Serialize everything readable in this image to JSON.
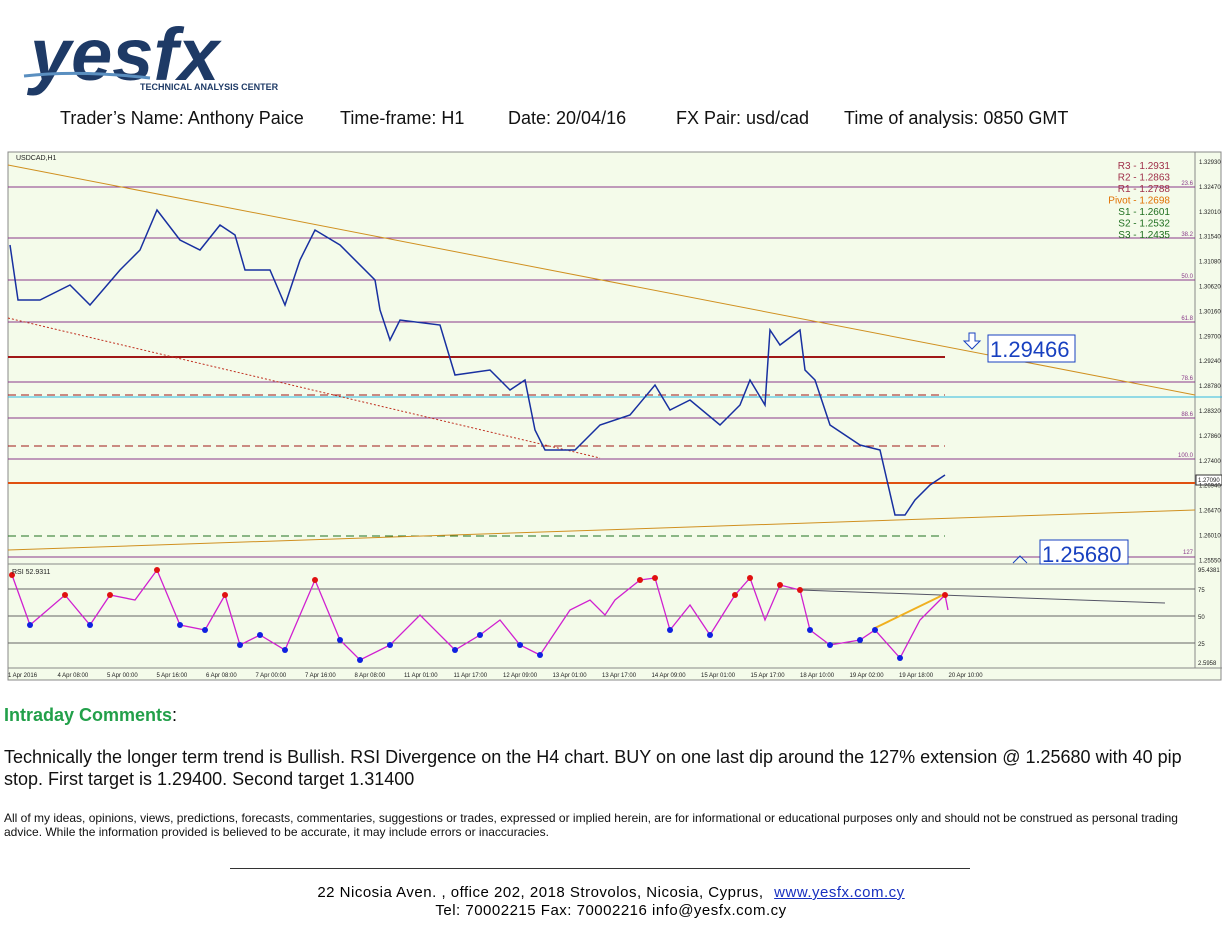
{
  "logo": {
    "name": "yesfx",
    "tagline": "TECHNICAL ANALYSIS CENTER"
  },
  "header": {
    "trader": "Trader’s Name: Anthony Paice",
    "timeframe": "Time-frame:  H1",
    "date": "Date:  20/04/16",
    "pair": "FX Pair: usd/cad",
    "time": "Time of analysis: 0850 GMT"
  },
  "chart": {
    "symbol": "USDCAD,H1",
    "rsi_label": "RSI 52.9311",
    "pivots": [
      "R3 - 1.2931",
      "R2 - 1.2863",
      "R1 - 1.2788",
      "Pivot - 1.2698",
      "S1 - 1.2601",
      "S2 - 1.2532",
      "S3 - 1.2435"
    ],
    "fib_levels": [
      "23.6",
      "38.2",
      "50.0",
      "61.8",
      "78.6",
      "88.6",
      "100.0",
      "127"
    ],
    "price_axis": [
      "1.32930",
      "1.32470",
      "1.32010",
      "1.31540",
      "1.31080",
      "1.30620",
      "1.30160",
      "1.29700",
      "1.29240",
      "1.28780",
      "1.28320",
      "1.27860",
      "1.27400",
      "1.26940",
      "1.26470",
      "1.26010",
      "1.25550"
    ],
    "current_price": "1.27090",
    "rsi_axis": [
      "95.4381",
      "75",
      "50",
      "25",
      "2.5958"
    ],
    "target_label": "1.29466",
    "entry_label": "1.25680",
    "time_axis": [
      "1 Apr 2016",
      "4 Apr 08:00",
      "5 Apr 00:00",
      "5 Apr 16:00",
      "6 Apr 08:00",
      "7 Apr 00:00",
      "7 Apr 16:00",
      "8 Apr 08:00",
      "11 Apr 01:00",
      "11 Apr 17:00",
      "12 Apr 09:00",
      "13 Apr 01:00",
      "13 Apr 17:00",
      "14 Apr 09:00",
      "15 Apr 01:00",
      "15 Apr 17:00",
      "18 Apr 10:00",
      "19 Apr 02:00",
      "19 Apr 18:00",
      "20 Apr 10:00"
    ]
  },
  "comments": {
    "heading": "Intraday Comments",
    "colon": ":",
    "body": "Technically the longer term trend is Bullish.  RSI Divergence on the H4 chart.  BUY on one last dip around the 127% extension @ 1.25680 with 40 pip stop.  First target is 1.29400.  Second target 1.31400"
  },
  "disclaimer": "All of my ideas, opinions, views, predictions, forecasts, commentaries, suggestions or trades, expressed or implied herein, are for informational or educational purposes only and should not be construed as personal trading advice. While the information provided is believed to be accurate, it may include errors or inaccuracies.",
  "footer": {
    "address": "22 Nicosia Aven. ,  office 202,  2018 Strovolos,  Nicosia,  Cyprus,",
    "website": "www.yesfx.com.cy",
    "contact": "Tel:  70002215  Fax:  70002216  info@yesfx.com.cy"
  }
}
